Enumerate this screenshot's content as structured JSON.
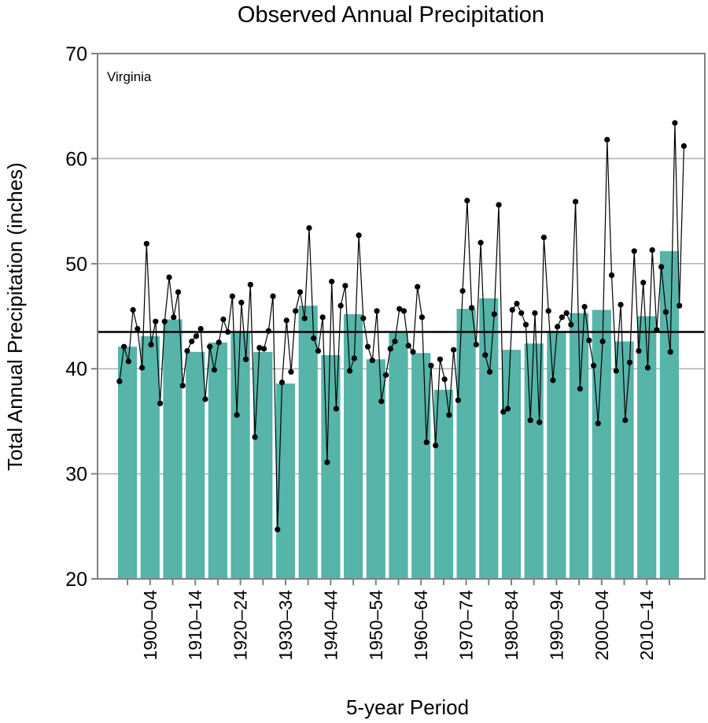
{
  "chart_data": {
    "type": "bar",
    "title": "Observed Annual Precipitation",
    "annotation": "Virginia",
    "xlabel": "5-year Period",
    "ylabel": "Total Annual Precipitation (inches)",
    "ylim": [
      20,
      70
    ],
    "yticks": [
      20,
      30,
      40,
      50,
      60,
      70
    ],
    "grid": true,
    "periods": [
      "1895–99",
      "1900–04",
      "1905–09",
      "1910–14",
      "1915–19",
      "1920–24",
      "1925–29",
      "1930–34",
      "1935–39",
      "1940–44",
      "1945–49",
      "1950–54",
      "1955–59",
      "1960–64",
      "1965–69",
      "1970–74",
      "1975–79",
      "1980–84",
      "1985–89",
      "1990–94",
      "1995–99",
      "2000–04",
      "2005–09",
      "2010–14",
      "2015–20"
    ],
    "xtick_labels": [
      "",
      "1900–04",
      "",
      "1910–14",
      "",
      "1920–24",
      "",
      "1930–34",
      "",
      "1940–44",
      "",
      "1950–54",
      "",
      "1960–64",
      "",
      "1970–74",
      "",
      "1980–84",
      "",
      "1990–94",
      "",
      "2000–04",
      "",
      "2010–14",
      ""
    ],
    "bar_values": [
      42.1,
      43.1,
      44.7,
      41.6,
      42.5,
      43.4,
      41.6,
      38.6,
      46.0,
      41.3,
      45.2,
      40.9,
      43.4,
      41.5,
      38.0,
      45.7,
      46.7,
      41.8,
      42.4,
      43.6,
      45.3,
      45.6,
      42.6,
      45.0,
      51.2
    ],
    "long_term_average": 43.5,
    "annual_start_year": 1895,
    "annual_values": [
      38.8,
      42.1,
      40.7,
      45.6,
      43.8,
      40.1,
      51.9,
      42.3,
      44.5,
      36.7,
      44.5,
      48.7,
      44.9,
      47.3,
      38.4,
      41.7,
      42.6,
      43.1,
      43.8,
      37.1,
      42.1,
      39.9,
      42.5,
      44.7,
      43.5,
      46.9,
      35.6,
      46.3,
      40.9,
      48.0,
      33.5,
      42.0,
      41.9,
      43.6,
      46.9,
      24.7,
      38.7,
      44.6,
      39.7,
      45.5,
      47.3,
      44.8,
      53.4,
      42.9,
      41.7,
      44.9,
      31.1,
      48.3,
      36.2,
      46.0,
      47.9,
      39.8,
      41.0,
      52.7,
      44.8,
      42.1,
      40.8,
      45.5,
      36.9,
      39.4,
      41.9,
      42.6,
      45.7,
      45.5,
      42.2,
      41.6,
      47.8,
      44.9,
      33.0,
      40.3,
      32.7,
      40.9,
      39.0,
      35.6,
      41.8,
      37.0,
      47.4,
      56.0,
      45.8,
      42.3,
      52.0,
      41.3,
      39.7,
      45.2,
      55.6,
      35.9,
      36.2,
      45.6,
      46.2,
      45.3,
      44.2,
      35.1,
      45.3,
      34.9,
      52.5,
      45.5,
      38.9,
      44.0,
      44.9,
      45.3,
      44.2,
      55.9,
      38.1,
      45.9,
      42.7,
      40.3,
      34.8,
      42.6,
      61.8,
      48.9,
      39.8,
      46.1,
      35.1,
      40.6,
      51.2,
      41.7,
      48.2,
      40.1,
      51.3,
      43.7,
      49.7,
      45.4,
      41.6,
      63.4,
      46.0,
      61.2
    ],
    "colors": {
      "bar": "#56b4a9",
      "line": "#000000",
      "point": "#000000",
      "average": "#000000",
      "grid": "#b0b0b0",
      "frame": "#808080"
    }
  }
}
